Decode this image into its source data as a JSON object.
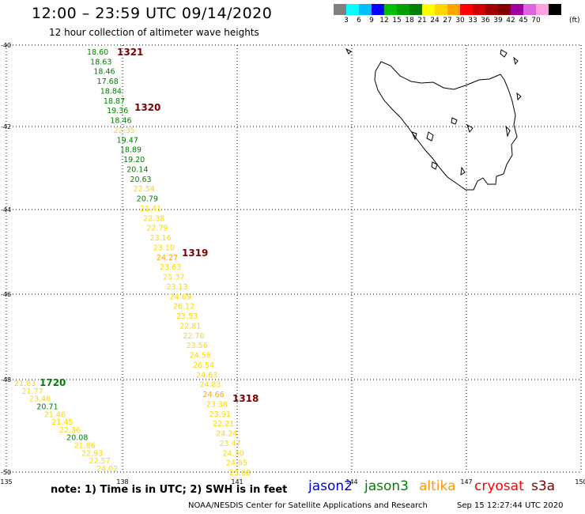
{
  "header": {
    "title": "12:00 – 23:59 UTC 09/14/2020",
    "subtitle": "12 hour collection of altimeter wave heights"
  },
  "scale": {
    "colors": [
      "#808080",
      "#00ffff",
      "#00bfff",
      "#0000ff",
      "#00c000",
      "#00a000",
      "#008000",
      "#ffff00",
      "#ffd700",
      "#ffa500",
      "#ff0000",
      "#d00000",
      "#a00000",
      "#800000",
      "#a000a0",
      "#dd66dd",
      "#ffa0e0",
      "#000000"
    ],
    "labels": [
      "3",
      "6",
      "9",
      "12",
      "15",
      "18",
      "21",
      "24",
      "27",
      "30",
      "33",
      "36",
      "39",
      "42",
      "45",
      "70"
    ],
    "unit": "(ft)"
  },
  "map": {
    "lat_labels": [
      "40",
      "42",
      "44",
      "46",
      "48",
      "50"
    ],
    "lon_labels": [
      "135",
      "138",
      "141",
      "144",
      "147",
      "150"
    ],
    "passes": [
      {
        "label": "1321",
        "color": "#800000"
      },
      {
        "label": "1320",
        "color": "#800000"
      },
      {
        "label": "1319",
        "color": "#800000"
      },
      {
        "label": "1318",
        "color": "#800000"
      },
      {
        "label": "1720",
        "color": "#008000"
      }
    ],
    "points": [
      {
        "v": "18.60",
        "c": "#008000"
      },
      {
        "v": "18.63",
        "c": "#008000"
      },
      {
        "v": "18.46",
        "c": "#008000"
      },
      {
        "v": "17.68",
        "c": "#008000"
      },
      {
        "v": "18.84",
        "c": "#008000"
      },
      {
        "v": "18.87",
        "c": "#008000"
      },
      {
        "v": "19.36",
        "c": "#008000"
      },
      {
        "v": "18.46",
        "c": "#008000"
      },
      {
        "v": "22.35",
        "c": "#ffd700"
      },
      {
        "v": "19.47",
        "c": "#008000"
      },
      {
        "v": "18.89",
        "c": "#008000"
      },
      {
        "v": "19.20",
        "c": "#008000"
      },
      {
        "v": "20.14",
        "c": "#008000"
      },
      {
        "v": "20.63",
        "c": "#008000"
      },
      {
        "v": "22.54",
        "c": "#ffd700"
      },
      {
        "v": "20.79",
        "c": "#008000"
      },
      {
        "v": "21.41",
        "c": "#ffd700"
      },
      {
        "v": "22.38",
        "c": "#ffd700"
      },
      {
        "v": "22.79",
        "c": "#ffd700"
      },
      {
        "v": "23.16",
        "c": "#ffd700"
      },
      {
        "v": "23.10",
        "c": "#ffd700"
      },
      {
        "v": "24.27",
        "c": "#ffa500"
      },
      {
        "v": "23.63",
        "c": "#ffd700"
      },
      {
        "v": "25.37",
        "c": "#ffd700"
      },
      {
        "v": "23.13",
        "c": "#ffd700"
      },
      {
        "v": "24.69",
        "c": "#ffd700"
      },
      {
        "v": "26.12",
        "c": "#ffd700"
      },
      {
        "v": "23.53",
        "c": "#ffd700"
      },
      {
        "v": "22.81",
        "c": "#ffd700"
      },
      {
        "v": "22.70",
        "c": "#ffd700"
      },
      {
        "v": "23.56",
        "c": "#ffd700"
      },
      {
        "v": "24.58",
        "c": "#ffd700"
      },
      {
        "v": "26.54",
        "c": "#ffd700"
      },
      {
        "v": "24.63",
        "c": "#ffd700"
      },
      {
        "v": "24.83",
        "c": "#ffd700"
      },
      {
        "v": "24.66",
        "c": "#ffa500"
      },
      {
        "v": "23.38",
        "c": "#ffd700"
      },
      {
        "v": "23.91",
        "c": "#ffd700"
      },
      {
        "v": "22.21",
        "c": "#ffd700"
      },
      {
        "v": "24.24",
        "c": "#ffd700"
      },
      {
        "v": "23.47",
        "c": "#ffd700"
      },
      {
        "v": "24.30",
        "c": "#ffd700"
      },
      {
        "v": "24.95",
        "c": "#ffd700"
      },
      {
        "v": "25.08",
        "c": "#ffd700"
      },
      {
        "v": "21.83",
        "c": "#ffd700"
      },
      {
        "v": "21.77",
        "c": "#ffd700"
      },
      {
        "v": "23.48",
        "c": "#ffd700"
      },
      {
        "v": "20.71",
        "c": "#008000"
      },
      {
        "v": "21.46",
        "c": "#ffd700"
      },
      {
        "v": "21.45",
        "c": "#ffd700"
      },
      {
        "v": "22.36",
        "c": "#ffd700"
      },
      {
        "v": "20.08",
        "c": "#008000"
      },
      {
        "v": "21.86",
        "c": "#ffd700"
      },
      {
        "v": "22.93",
        "c": "#ffd700"
      },
      {
        "v": "22.57",
        "c": "#ffd700"
      },
      {
        "v": "24.02",
        "c": "#ffd700"
      }
    ]
  },
  "footer": {
    "note": "note: 1) Time is in UTC; 2) SWH is in feet",
    "satellites": [
      {
        "name": "jason2",
        "color": "#0000cc"
      },
      {
        "name": "jason3",
        "color": "#008000"
      },
      {
        "name": "altika",
        "color": "#ff9900"
      },
      {
        "name": "cryosat",
        "color": "#ff0000"
      },
      {
        "name": "s3a",
        "color": "#800000"
      }
    ],
    "credit": "NOAA/NESDIS Center for Satellite Applications and Research",
    "timestamp": "Sep 15 12:27:44 UTC 2020"
  }
}
